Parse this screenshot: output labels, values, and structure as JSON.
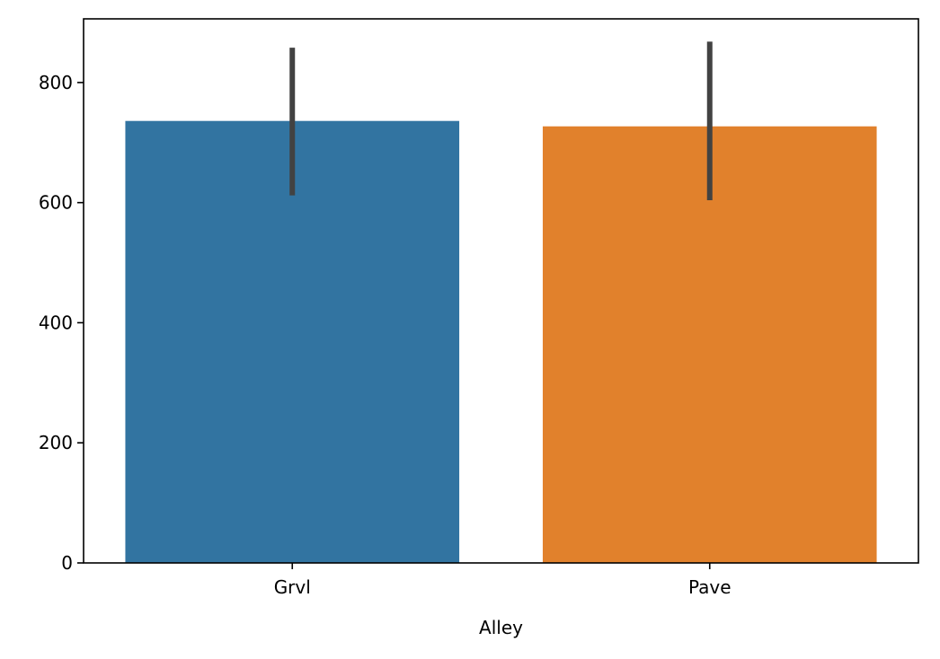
{
  "chart_data": {
    "type": "bar",
    "xlabel": "Alley",
    "ylabel": "",
    "categories": [
      "Grvl",
      "Pave"
    ],
    "values": [
      736,
      727
    ],
    "error_bars": [
      [
        612,
        858
      ],
      [
        604,
        868
      ]
    ],
    "ylim": [
      0,
      906
    ],
    "yticks": [
      0,
      200,
      400,
      600,
      800
    ],
    "colors": [
      "#3274a1",
      "#e1812c"
    ],
    "errorbar_color": "#424242",
    "grid": false,
    "legend": "none"
  }
}
